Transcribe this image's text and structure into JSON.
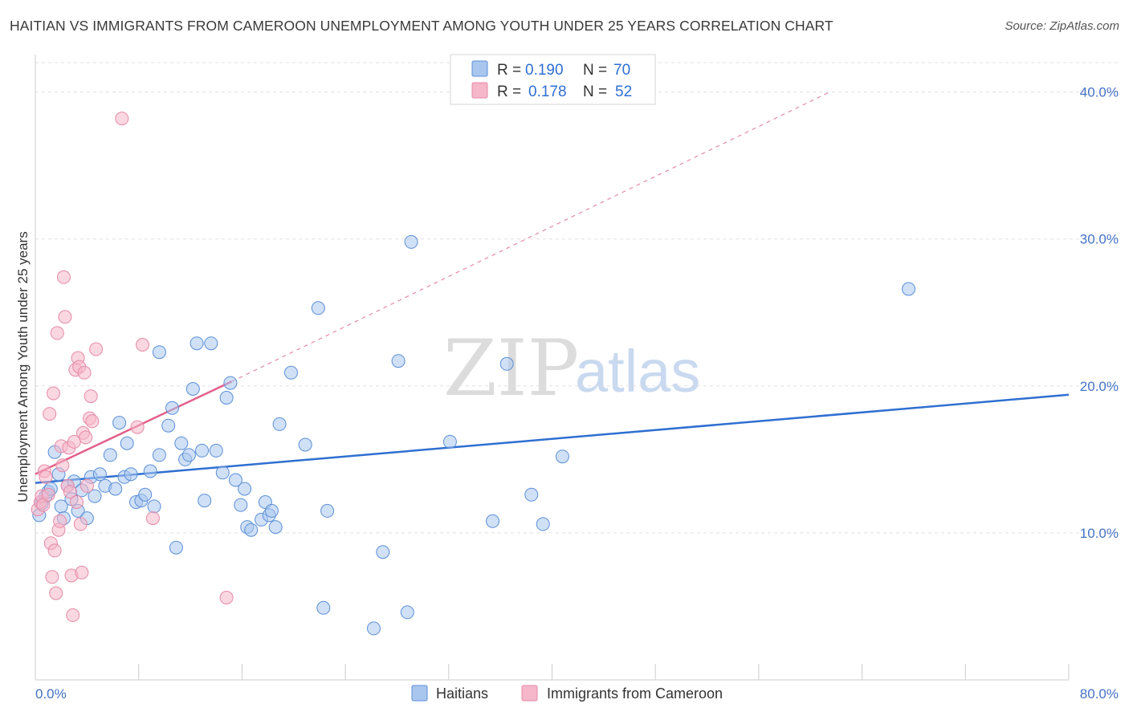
{
  "header": {
    "title": "HAITIAN VS IMMIGRANTS FROM CAMEROON UNEMPLOYMENT AMONG YOUTH UNDER 25 YEARS CORRELATION CHART",
    "source": "Source: ZipAtlas.com"
  },
  "watermark": {
    "zip": "ZIP",
    "atlas": "atlas"
  },
  "legend": {
    "r_label": "R =",
    "n_label": "N =",
    "rows": [
      {
        "name": "Haitians",
        "r": "0.190",
        "n": "70",
        "color": "#a9c6ef"
      },
      {
        "name": "Immigrants from Cameroon",
        "r": "0.178",
        "n": "52",
        "color": "#f5b7c9"
      }
    ]
  },
  "chart_data": {
    "type": "scatter",
    "title": "HAITIAN VS IMMIGRANTS FROM CAMEROON UNEMPLOYMENT AMONG YOUTH UNDER 25 YEARS CORRELATION CHART",
    "xlabel": "",
    "ylabel": "Unemployment Among Youth under 25 years",
    "xlim": [
      0,
      80
    ],
    "ylim": [
      0,
      42
    ],
    "x_tick_labels": [
      "0.0%",
      "80.0%"
    ],
    "y_tick_labels": [
      "10.0%",
      "20.0%",
      "30.0%",
      "40.0%"
    ],
    "y_ticks": [
      10,
      20,
      30,
      40
    ],
    "grid": true,
    "series": [
      {
        "name": "Haitians",
        "color": "#5b8fd8",
        "fill": "#a9c6ef",
        "trend": {
          "x": [
            0,
            80
          ],
          "y": [
            13.4,
            19.4
          ],
          "dashed": false
        },
        "points": [
          [
            0.3,
            11.2
          ],
          [
            0.5,
            12.0
          ],
          [
            0.8,
            12.5
          ],
          [
            1.0,
            12.8
          ],
          [
            1.2,
            13.0
          ],
          [
            1.5,
            15.5
          ],
          [
            1.8,
            14.0
          ],
          [
            2.0,
            11.8
          ],
          [
            2.2,
            11.0
          ],
          [
            2.5,
            13.2
          ],
          [
            2.8,
            12.3
          ],
          [
            3.0,
            13.5
          ],
          [
            3.3,
            11.5
          ],
          [
            3.6,
            12.9
          ],
          [
            4.0,
            11.0
          ],
          [
            4.3,
            13.8
          ],
          [
            4.6,
            12.5
          ],
          [
            5.0,
            14.0
          ],
          [
            5.4,
            13.2
          ],
          [
            5.8,
            15.3
          ],
          [
            6.2,
            13.0
          ],
          [
            6.5,
            17.5
          ],
          [
            6.9,
            13.8
          ],
          [
            7.1,
            16.1
          ],
          [
            7.4,
            14.0
          ],
          [
            7.8,
            12.1
          ],
          [
            8.2,
            12.2
          ],
          [
            8.5,
            12.6
          ],
          [
            8.9,
            14.2
          ],
          [
            9.2,
            11.8
          ],
          [
            9.6,
            15.3
          ],
          [
            9.6,
            22.3
          ],
          [
            10.3,
            17.3
          ],
          [
            10.6,
            18.5
          ],
          [
            10.9,
            9.0
          ],
          [
            11.3,
            16.1
          ],
          [
            11.6,
            15.0
          ],
          [
            11.9,
            15.3
          ],
          [
            12.2,
            19.8
          ],
          [
            12.5,
            22.9
          ],
          [
            12.9,
            15.6
          ],
          [
            13.1,
            12.2
          ],
          [
            13.6,
            22.9
          ],
          [
            14.0,
            15.6
          ],
          [
            14.5,
            14.1
          ],
          [
            14.8,
            19.2
          ],
          [
            15.1,
            20.2
          ],
          [
            15.5,
            13.6
          ],
          [
            15.9,
            11.9
          ],
          [
            16.2,
            13.0
          ],
          [
            16.4,
            10.4
          ],
          [
            16.7,
            10.2
          ],
          [
            17.5,
            10.9
          ],
          [
            17.8,
            12.1
          ],
          [
            18.1,
            11.2
          ],
          [
            18.3,
            11.5
          ],
          [
            18.6,
            10.4
          ],
          [
            18.9,
            17.4
          ],
          [
            19.8,
            20.9
          ],
          [
            20.9,
            16.0
          ],
          [
            21.9,
            25.3
          ],
          [
            22.3,
            4.9
          ],
          [
            22.6,
            11.5
          ],
          [
            26.2,
            3.5
          ],
          [
            26.9,
            8.7
          ],
          [
            28.1,
            21.7
          ],
          [
            28.8,
            4.6
          ],
          [
            29.1,
            29.8
          ],
          [
            32.1,
            16.2
          ],
          [
            35.4,
            10.8
          ],
          [
            36.5,
            21.5
          ],
          [
            38.4,
            12.6
          ],
          [
            39.3,
            10.6
          ],
          [
            40.8,
            15.2
          ],
          [
            67.6,
            26.6
          ]
        ]
      },
      {
        "name": "Immigrants from Cameroon",
        "color": "#e58aa8",
        "fill": "#f5b7c9",
        "trend": {
          "x": [
            0,
            15.2
          ],
          "y": [
            14.0,
            20.3
          ],
          "dashed": false,
          "extended": {
            "x": [
              15.2,
              61.5
            ],
            "y": [
              20.3,
              40.0
            ],
            "dashed": true
          }
        },
        "points": [
          [
            0.2,
            11.6
          ],
          [
            0.4,
            12.1
          ],
          [
            0.5,
            12.5
          ],
          [
            0.6,
            11.9
          ],
          [
            0.7,
            14.2
          ],
          [
            0.8,
            13.8
          ],
          [
            1.0,
            12.6
          ],
          [
            1.1,
            18.1
          ],
          [
            1.2,
            9.3
          ],
          [
            1.3,
            7.0
          ],
          [
            1.4,
            19.5
          ],
          [
            1.5,
            8.8
          ],
          [
            1.6,
            5.9
          ],
          [
            1.7,
            23.6
          ],
          [
            1.8,
            10.2
          ],
          [
            1.9,
            10.8
          ],
          [
            2.0,
            15.9
          ],
          [
            2.1,
            14.6
          ],
          [
            2.2,
            27.4
          ],
          [
            2.3,
            24.7
          ],
          [
            2.5,
            13.2
          ],
          [
            2.6,
            15.8
          ],
          [
            2.7,
            12.8
          ],
          [
            2.8,
            7.1
          ],
          [
            2.9,
            4.4
          ],
          [
            3.0,
            16.2
          ],
          [
            3.1,
            21.1
          ],
          [
            3.2,
            12.1
          ],
          [
            3.3,
            21.9
          ],
          [
            3.4,
            21.3
          ],
          [
            3.5,
            10.6
          ],
          [
            3.6,
            7.3
          ],
          [
            3.7,
            16.8
          ],
          [
            3.8,
            20.9
          ],
          [
            3.9,
            16.5
          ],
          [
            4.0,
            13.2
          ],
          [
            4.2,
            17.8
          ],
          [
            4.3,
            19.3
          ],
          [
            4.4,
            17.6
          ],
          [
            4.7,
            22.5
          ],
          [
            6.7,
            38.2
          ],
          [
            7.9,
            17.2
          ],
          [
            8.3,
            22.8
          ],
          [
            9.1,
            11.0
          ],
          [
            14.8,
            5.6
          ]
        ]
      }
    ]
  }
}
